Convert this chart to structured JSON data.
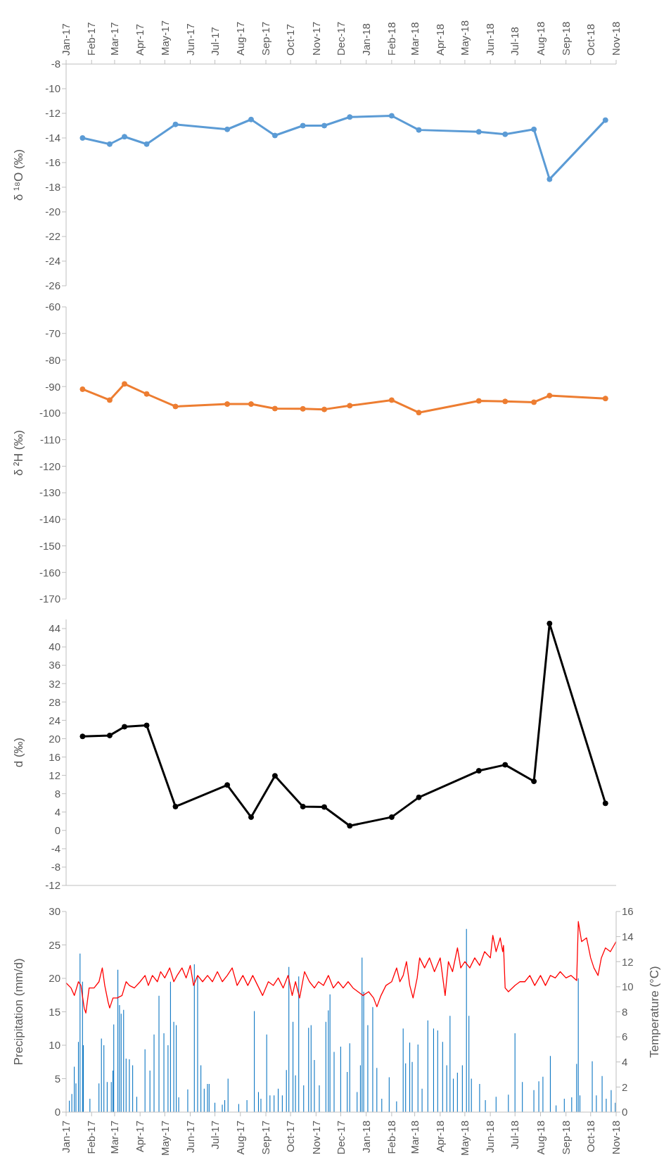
{
  "chart_data": [
    {
      "type": "line",
      "ylabel": "δ ¹⁸O (‰)",
      "x": [
        "2017-01-21",
        "2017-02-23",
        "2017-03-13",
        "2017-04-09",
        "2017-05-14",
        "2017-07-16",
        "2017-08-14",
        "2017-09-12",
        "2017-10-16",
        "2017-11-11",
        "2017-12-12",
        "2018-02-01",
        "2018-03-06",
        "2018-05-18",
        "2018-06-19",
        "2018-07-24",
        "2018-08-12",
        "2018-10-19"
      ],
      "series": [
        {
          "color": "#5b9bd5",
          "values": [
            -14.0,
            -14.5,
            -13.9,
            -14.5,
            -12.9,
            -13.3,
            -12.5,
            -13.8,
            -13.0,
            -13.0,
            -12.3,
            -12.2,
            -13.35,
            -13.5,
            -13.7,
            -13.3,
            -17.35,
            -12.55
          ]
        }
      ],
      "ylim": [
        -26,
        -8
      ],
      "yticks": [
        -26,
        -24,
        -22,
        -20,
        -18,
        -16,
        -14,
        -12,
        -10,
        -8
      ],
      "xlim": [
        "2017-01-01",
        "2018-11-01"
      ],
      "xticks": [
        {
          "value": "2017-01-01",
          "label": "Jan-17"
        },
        {
          "value": "2017-02-01",
          "label": "Feb-17"
        },
        {
          "value": "2017-03-01",
          "label": "Mar-17"
        },
        {
          "value": "2017-04-01",
          "label": "Apr-17"
        },
        {
          "value": "2017-05-01",
          "label": "May-17"
        },
        {
          "value": "2017-06-01",
          "label": "Jun-17"
        },
        {
          "value": "2017-07-01",
          "label": "Jul-17"
        },
        {
          "value": "2017-08-01",
          "label": "Aug-17"
        },
        {
          "value": "2017-09-01",
          "label": "Sep-17"
        },
        {
          "value": "2017-10-01",
          "label": "Oct-17"
        },
        {
          "value": "2017-11-01",
          "label": "Nov-17"
        },
        {
          "value": "2017-12-01",
          "label": "Dec-17"
        },
        {
          "value": "2018-01-01",
          "label": "Jan-18"
        },
        {
          "value": "2018-02-01",
          "label": "Feb-18"
        },
        {
          "value": "2018-03-01",
          "label": "Mar-18"
        },
        {
          "value": "2018-04-01",
          "label": "Apr-18"
        },
        {
          "value": "2018-05-01",
          "label": "May-18"
        },
        {
          "value": "2018-06-01",
          "label": "Jun-18"
        },
        {
          "value": "2018-07-01",
          "label": "Jul-18"
        },
        {
          "value": "2018-08-01",
          "label": "Aug-18"
        },
        {
          "value": "2018-09-01",
          "label": "Sep-18"
        },
        {
          "value": "2018-10-01",
          "label": "Oct-18"
        },
        {
          "value": "2018-11-01",
          "label": "Nov-18"
        }
      ],
      "marker": "circle",
      "line_style": "solid"
    },
    {
      "type": "line",
      "ylabel": "δ ²H (‰)",
      "x": [
        "2017-01-21",
        "2017-02-23",
        "2017-03-13",
        "2017-04-09",
        "2017-05-14",
        "2017-07-16",
        "2017-08-14",
        "2017-09-12",
        "2017-10-16",
        "2017-11-11",
        "2017-12-12",
        "2018-02-01",
        "2018-03-06",
        "2018-05-18",
        "2018-06-19",
        "2018-07-24",
        "2018-08-12",
        "2018-10-19"
      ],
      "series": [
        {
          "color": "#ed7d31",
          "values": [
            -91.0,
            -95.1,
            -89.0,
            -92.8,
            -97.5,
            -96.6,
            -96.6,
            -98.3,
            -98.4,
            -98.6,
            -97.2,
            -95.1,
            -99.8,
            -95.4,
            -95.6,
            -95.9,
            -93.4,
            -94.5
          ]
        }
      ],
      "ylim": [
        -170,
        -60
      ],
      "yticks": [
        -170,
        -160,
        -150,
        -140,
        -130,
        -120,
        -110,
        -100,
        -90,
        -80,
        -70,
        -60
      ],
      "xlim": [
        "2017-01-01",
        "2018-11-01"
      ],
      "tick_labels": "y",
      "marker": "circle",
      "line_style": "solid"
    },
    {
      "type": "line",
      "ylabel": "d (‰)",
      "x": [
        "2017-01-21",
        "2017-02-23",
        "2017-03-13",
        "2017-04-09",
        "2017-05-14",
        "2017-07-16",
        "2017-08-14",
        "2017-09-12",
        "2017-10-16",
        "2017-11-11",
        "2017-12-12",
        "2018-02-01",
        "2018-03-06",
        "2018-05-18",
        "2018-06-19",
        "2018-07-24",
        "2018-08-12",
        "2018-10-19"
      ],
      "series": [
        {
          "color": "#000000",
          "values": [
            20.5,
            20.7,
            22.6,
            22.9,
            5.2,
            9.9,
            2.9,
            11.9,
            5.2,
            5.1,
            1.0,
            2.9,
            7.2,
            13.0,
            14.3,
            10.7,
            45.1,
            5.9
          ]
        }
      ],
      "ylim": [
        -12,
        46
      ],
      "yticks": [
        -12,
        -8,
        -4,
        0,
        4,
        8,
        12,
        16,
        20,
        24,
        28,
        32,
        36,
        40,
        44
      ],
      "xlim": [
        "2017-01-01",
        "2018-11-01"
      ],
      "xticks": [
        {
          "value": "2017-01-01",
          "label": null
        },
        {
          "value": "2017-02-01",
          "label": null
        },
        {
          "value": "2017-03-01",
          "label": null
        },
        {
          "value": "2017-04-01",
          "label": null
        },
        {
          "value": "2017-05-01",
          "label": null
        },
        {
          "value": "2017-06-01",
          "label": null
        },
        {
          "value": "2017-07-01",
          "label": null
        },
        {
          "value": "2017-08-01",
          "label": null
        },
        {
          "value": "2017-09-01",
          "label": null
        },
        {
          "value": "2017-10-01",
          "label": null
        },
        {
          "value": "2017-11-01",
          "label": null
        },
        {
          "value": "2017-12-01",
          "label": null
        },
        {
          "value": "2018-01-01",
          "label": null
        },
        {
          "value": "2018-02-01",
          "label": null
        },
        {
          "value": "2018-03-01",
          "label": null
        },
        {
          "value": "2018-04-01",
          "label": null
        },
        {
          "value": "2018-05-01",
          "label": null
        },
        {
          "value": "2018-06-01",
          "label": null
        },
        {
          "value": "2018-07-01",
          "label": null
        },
        {
          "value": "2018-08-01",
          "label": null
        },
        {
          "value": "2018-09-01",
          "label": null
        },
        {
          "value": "2018-10-01",
          "label": null
        },
        {
          "value": "2018-11-01",
          "label": null
        }
      ],
      "tick_labels": "y",
      "marker": "circle",
      "line_style": "solid"
    },
    {
      "type": "bar",
      "ylabel": "Precipitation (mm/d)",
      "y2label": "Temperature (°C)",
      "series": [
        {
          "color": "#0070c0",
          "x": [
            "2017-01-05",
            "2017-01-08",
            "2017-01-11",
            "2017-01-13",
            "2017-01-16",
            "2017-01-18",
            "2017-01-21",
            "2017-01-22",
            "2017-01-30",
            "2017-02-10",
            "2017-02-13",
            "2017-02-16",
            "2017-02-20",
            "2017-02-25",
            "2017-02-27",
            "2017-02-28",
            "2017-03-05",
            "2017-03-07",
            "2017-03-09",
            "2017-03-12",
            "2017-03-15",
            "2017-03-19",
            "2017-03-23",
            "2017-03-28",
            "2017-04-07",
            "2017-04-13",
            "2017-04-18",
            "2017-04-24",
            "2017-04-30",
            "2017-05-05",
            "2017-05-08",
            "2017-05-12",
            "2017-05-15",
            "2017-05-18",
            "2017-05-29",
            "2017-06-06",
            "2017-06-10",
            "2017-06-14",
            "2017-06-18",
            "2017-06-22",
            "2017-06-24",
            "2017-07-01",
            "2017-07-10",
            "2017-07-13",
            "2017-07-17",
            "2017-07-30",
            "2017-08-09",
            "2017-08-18",
            "2017-08-23",
            "2017-08-26",
            "2017-09-02",
            "2017-09-06",
            "2017-09-11",
            "2017-09-16",
            "2017-09-21",
            "2017-09-26",
            "2017-09-29",
            "2017-10-04",
            "2017-10-07",
            "2017-10-11",
            "2017-10-17",
            "2017-10-23",
            "2017-10-26",
            "2017-10-30",
            "2017-11-05",
            "2017-11-13",
            "2017-11-16",
            "2017-11-18",
            "2017-11-23",
            "2017-12-01",
            "2017-12-09",
            "2017-12-12",
            "2017-12-21",
            "2017-12-25",
            "2017-12-27",
            "2017-12-29",
            "2018-01-03",
            "2018-01-09",
            "2018-01-14",
            "2018-01-20",
            "2018-01-29",
            "2018-02-07",
            "2018-02-15",
            "2018-02-18",
            "2018-02-23",
            "2018-02-26",
            "2018-03-05",
            "2018-03-10",
            "2018-03-17",
            "2018-03-24",
            "2018-03-29",
            "2018-04-04",
            "2018-04-09",
            "2018-04-13",
            "2018-04-17",
            "2018-04-22",
            "2018-04-28",
            "2018-05-03",
            "2018-05-06",
            "2018-05-09",
            "2018-05-19",
            "2018-05-26",
            "2018-06-08",
            "2018-06-23",
            "2018-07-01",
            "2018-07-10",
            "2018-07-24",
            "2018-07-30",
            "2018-08-04",
            "2018-08-13",
            "2018-08-20",
            "2018-08-30",
            "2018-09-08",
            "2018-09-14",
            "2018-09-16",
            "2018-09-18",
            "2018-10-03",
            "2018-10-08",
            "2018-10-15",
            "2018-10-20",
            "2018-10-26",
            "2018-10-31"
          ],
          "values": [
            1.7,
            2.7,
            6.8,
            4.3,
            10.5,
            23.7,
            19.5,
            10.0,
            2.0,
            4.3,
            11.0,
            10.0,
            4.5,
            4.5,
            6.2,
            13.1,
            21.3,
            16.0,
            14.7,
            15.3,
            8.0,
            7.9,
            7.0,
            2.3,
            9.4,
            6.2,
            11.6,
            17.4,
            11.8,
            10.0,
            19.5,
            13.5,
            13.0,
            2.2,
            3.4,
            22.1,
            20.3,
            7.0,
            3.5,
            4.2,
            4.2,
            1.4,
            1.1,
            1.8,
            5.0,
            1.2,
            1.8,
            15.1,
            3.0,
            2.0,
            11.6,
            2.5,
            2.5,
            3.5,
            2.5,
            6.3,
            21.7,
            13.5,
            5.5,
            20.3,
            4.0,
            12.6,
            13.0,
            7.8,
            4.0,
            13.5,
            15.2,
            17.6,
            9.0,
            9.8,
            6.0,
            10.3,
            3.0,
            7.0,
            23.1,
            18.0,
            13.0,
            15.7,
            6.6,
            2.0,
            5.2,
            1.6,
            12.5,
            7.3,
            10.4,
            7.5,
            10.1,
            3.5,
            13.7,
            12.5,
            12.2,
            10.5,
            7.0,
            14.4,
            5.0,
            5.9,
            7.0,
            27.4,
            14.4,
            5.0,
            4.2,
            1.8,
            2.3,
            2.6,
            11.8,
            4.5,
            3.3,
            4.6,
            5.3,
            8.4,
            1.0,
            2.0,
            2.2,
            7.2,
            20.0,
            2.5,
            7.6,
            2.5,
            5.4,
            2.0,
            3.3,
            1.4
          ]
        },
        {
          "type": "line",
          "axis": "y2",
          "color": "#ff0000",
          "marker": "none",
          "x": [
            "2017-01-01",
            "2017-01-07",
            "2017-01-11",
            "2017-01-16",
            "2017-01-19",
            "2017-01-23",
            "2017-01-25",
            "2017-01-29",
            "2017-02-04",
            "2017-02-10",
            "2017-02-14",
            "2017-02-17",
            "2017-02-21",
            "2017-02-23",
            "2017-02-27",
            "2017-03-04",
            "2017-03-10",
            "2017-03-15",
            "2017-03-19",
            "2017-03-25",
            "2017-04-01",
            "2017-04-07",
            "2017-04-11",
            "2017-04-16",
            "2017-04-22",
            "2017-04-26",
            "2017-05-01",
            "2017-05-07",
            "2017-05-12",
            "2017-05-16",
            "2017-05-22",
            "2017-05-27",
            "2017-06-01",
            "2017-06-05",
            "2017-06-10",
            "2017-06-16",
            "2017-06-22",
            "2017-06-28",
            "2017-07-04",
            "2017-07-10",
            "2017-07-16",
            "2017-07-22",
            "2017-07-28",
            "2017-08-04",
            "2017-08-10",
            "2017-08-16",
            "2017-08-22",
            "2017-08-28",
            "2017-09-04",
            "2017-09-10",
            "2017-09-16",
            "2017-09-22",
            "2017-09-28",
            "2017-10-03",
            "2017-10-07",
            "2017-10-12",
            "2017-10-18",
            "2017-10-24",
            "2017-10-30",
            "2017-11-04",
            "2017-11-10",
            "2017-11-16",
            "2017-11-22",
            "2017-11-28",
            "2017-12-04",
            "2017-12-10",
            "2017-12-16",
            "2017-12-22",
            "2017-12-28",
            "2018-01-04",
            "2018-01-10",
            "2018-01-14",
            "2018-01-19",
            "2018-01-25",
            "2018-02-01",
            "2018-02-07",
            "2018-02-11",
            "2018-02-15",
            "2018-02-19",
            "2018-02-23",
            "2018-02-27",
            "2018-03-04",
            "2018-03-07",
            "2018-03-13",
            "2018-03-19",
            "2018-03-25",
            "2018-04-01",
            "2018-04-07",
            "2018-04-11",
            "2018-04-16",
            "2018-04-22",
            "2018-04-26",
            "2018-05-01",
            "2018-05-07",
            "2018-05-13",
            "2018-05-19",
            "2018-05-25",
            "2018-06-01",
            "2018-06-04",
            "2018-06-08",
            "2018-06-13",
            "2018-06-16",
            "2018-06-17",
            "2018-06-19",
            "2018-06-23",
            "2018-07-01",
            "2018-07-07",
            "2018-07-13",
            "2018-07-19",
            "2018-07-25",
            "2018-08-01",
            "2018-08-07",
            "2018-08-13",
            "2018-08-19",
            "2018-08-25",
            "2018-09-01",
            "2018-09-07",
            "2018-09-14",
            "2018-09-16",
            "2018-09-20",
            "2018-09-26",
            "2018-10-01",
            "2018-10-05",
            "2018-10-10",
            "2018-10-14",
            "2018-10-19",
            "2018-10-25",
            "2018-11-01"
          ],
          "values": [
            10.3,
            9.9,
            9.3,
            10.4,
            10.1,
            8.3,
            7.9,
            9.9,
            9.9,
            10.4,
            11.5,
            10.1,
            8.8,
            8.3,
            9.1,
            9.1,
            9.3,
            10.4,
            10.1,
            9.9,
            10.4,
            10.9,
            10.1,
            10.9,
            10.4,
            11.2,
            10.7,
            11.5,
            10.4,
            10.9,
            11.5,
            10.7,
            11.7,
            10.1,
            10.9,
            10.4,
            10.9,
            10.4,
            11.2,
            10.4,
            10.9,
            11.5,
            10.1,
            10.9,
            10.1,
            10.9,
            10.1,
            9.3,
            10.4,
            10.1,
            10.7,
            9.9,
            10.9,
            9.3,
            10.4,
            9.1,
            11.2,
            10.4,
            9.9,
            10.4,
            10.1,
            10.9,
            9.9,
            10.4,
            9.9,
            10.4,
            9.9,
            9.6,
            9.3,
            9.6,
            9.1,
            8.4,
            9.3,
            10.1,
            10.4,
            11.5,
            10.4,
            10.9,
            12.0,
            10.1,
            9.1,
            10.7,
            12.3,
            11.5,
            12.3,
            11.2,
            12.3,
            9.3,
            12.0,
            11.2,
            13.1,
            11.5,
            12.0,
            11.5,
            12.3,
            11.7,
            12.8,
            12.3,
            14.1,
            12.8,
            13.9,
            12.8,
            13.3,
            9.9,
            9.6,
            10.1,
            10.4,
            10.4,
            10.9,
            10.1,
            10.9,
            10.1,
            10.9,
            10.7,
            11.2,
            10.7,
            10.9,
            10.5,
            15.2,
            13.6,
            13.9,
            12.3,
            11.5,
            10.9,
            12.3,
            13.1,
            12.8,
            13.6
          ]
        }
      ],
      "ylim": [
        0,
        30
      ],
      "yticks": [
        0,
        5,
        10,
        15,
        20,
        25,
        30
      ],
      "y2lim": [
        0,
        16
      ],
      "y2ticks": [
        0,
        2,
        4,
        6,
        8,
        10,
        12,
        14,
        16
      ],
      "xlim": [
        "2017-01-01",
        "2018-11-01"
      ],
      "xticks": [
        {
          "value": "2017-01-01",
          "label": "Jan-17"
        },
        {
          "value": "2017-02-01",
          "label": "Feb-17"
        },
        {
          "value": "2017-03-01",
          "label": "Mar-17"
        },
        {
          "value": "2017-04-01",
          "label": "Apr-17"
        },
        {
          "value": "2017-05-01",
          "label": "May-17"
        },
        {
          "value": "2017-06-01",
          "label": "Jun-17"
        },
        {
          "value": "2017-07-01",
          "label": "Jul-17"
        },
        {
          "value": "2017-08-01",
          "label": "Aug-17"
        },
        {
          "value": "2017-09-01",
          "label": "Sep-17"
        },
        {
          "value": "2017-10-01",
          "label": "Oct-17"
        },
        {
          "value": "2017-11-01",
          "label": "Nov-17"
        },
        {
          "value": "2017-12-01",
          "label": "Dec-17"
        },
        {
          "value": "2018-01-01",
          "label": "Jan-18"
        },
        {
          "value": "2018-02-01",
          "label": "Feb-18"
        },
        {
          "value": "2018-03-01",
          "label": "Mar-18"
        },
        {
          "value": "2018-04-01",
          "label": "Apr-18"
        },
        {
          "value": "2018-05-01",
          "label": "May-18"
        },
        {
          "value": "2018-06-01",
          "label": "Jun-18"
        },
        {
          "value": "2018-07-01",
          "label": "Jul-18"
        },
        {
          "value": "2018-08-01",
          "label": "Aug-18"
        },
        {
          "value": "2018-09-01",
          "label": "Sep-18"
        },
        {
          "value": "2018-10-01",
          "label": "Oct-18"
        },
        {
          "value": "2018-11-01",
          "label": "Nov-18"
        }
      ],
      "line_style": "solid"
    }
  ]
}
